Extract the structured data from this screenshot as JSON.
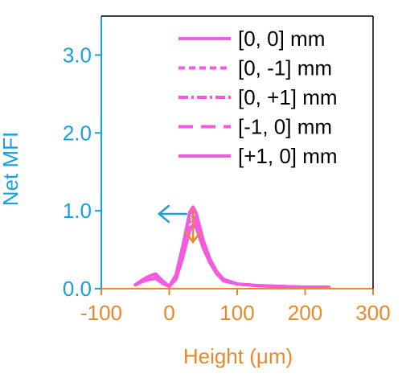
{
  "colors": {
    "series": "#f45ae0",
    "y_axis": "#1aa0dc",
    "x_axis": "#e8882a",
    "text": "#000000"
  },
  "chart_data": {
    "type": "line",
    "xlabel": "Height (μm)",
    "ylabel": "Net MFI",
    "xlim": [
      -100,
      300
    ],
    "ylim": [
      0,
      3.5
    ],
    "x_ticks": [
      -100,
      0,
      100,
      200,
      300
    ],
    "x_tick_labels": [
      "-100",
      "0",
      "100",
      "200",
      "300"
    ],
    "y_ticks": [
      0,
      1,
      2,
      3
    ],
    "y_tick_labels": [
      "0.0",
      "1.0",
      "2.0",
      "3.0"
    ],
    "grid": false,
    "legend_position": "top-right",
    "series": [
      {
        "name": "[0, 0] mm",
        "dash": "solid",
        "x": [
          -50,
          -40,
          -30,
          -20,
          -10,
          0,
          10,
          20,
          30,
          35,
          40,
          50,
          60,
          70,
          80,
          100,
          130,
          160,
          200,
          235
        ],
        "y": [
          0.05,
          0.09,
          0.12,
          0.13,
          0.07,
          0.03,
          0.18,
          0.55,
          0.98,
          1.05,
          0.96,
          0.62,
          0.38,
          0.22,
          0.12,
          0.06,
          0.04,
          0.03,
          0.02,
          0.02
        ]
      },
      {
        "name": "[0, -1] mm",
        "dash": "dash",
        "x": [
          -50,
          -40,
          -30,
          -20,
          -10,
          0,
          10,
          20,
          30,
          35,
          40,
          50,
          60,
          70,
          80,
          100,
          130,
          160,
          200,
          235
        ],
        "y": [
          0.05,
          0.1,
          0.14,
          0.15,
          0.08,
          0.03,
          0.16,
          0.5,
          0.92,
          1.0,
          0.93,
          0.6,
          0.37,
          0.21,
          0.12,
          0.06,
          0.04,
          0.03,
          0.02,
          0.02
        ]
      },
      {
        "name": "[0, +1] mm",
        "dash": "dashdot",
        "x": [
          -50,
          -40,
          -30,
          -20,
          -10,
          0,
          10,
          20,
          30,
          35,
          40,
          50,
          60,
          70,
          80,
          100,
          130,
          160,
          200,
          235
        ],
        "y": [
          0.05,
          0.09,
          0.12,
          0.14,
          0.07,
          0.03,
          0.15,
          0.45,
          0.85,
          0.93,
          0.88,
          0.58,
          0.36,
          0.2,
          0.11,
          0.06,
          0.04,
          0.03,
          0.02,
          0.02
        ]
      },
      {
        "name": "[-1, 0] mm",
        "dash": "longdash",
        "x": [
          -50,
          -40,
          -30,
          -20,
          -10,
          0,
          10,
          20,
          30,
          35,
          40,
          50,
          60,
          70,
          80,
          100,
          130,
          160,
          200,
          235
        ],
        "y": [
          0.05,
          0.1,
          0.15,
          0.17,
          0.09,
          0.03,
          0.14,
          0.42,
          0.8,
          0.88,
          0.83,
          0.55,
          0.35,
          0.2,
          0.11,
          0.06,
          0.04,
          0.03,
          0.02,
          0.02
        ]
      },
      {
        "name": "[+1, 0] mm",
        "dash": "solid",
        "x": [
          -50,
          -40,
          -30,
          -20,
          -10,
          0,
          10,
          20,
          30,
          35,
          40,
          50,
          60,
          70,
          80,
          100,
          130,
          160,
          200,
          235
        ],
        "y": [
          0.05,
          0.11,
          0.16,
          0.19,
          0.1,
          0.03,
          0.12,
          0.4,
          0.75,
          0.82,
          0.78,
          0.52,
          0.33,
          0.19,
          0.1,
          0.06,
          0.04,
          0.03,
          0.02,
          0.02
        ]
      }
    ],
    "annotations": [
      {
        "type": "arrow",
        "direction": "left",
        "color": "y_axis",
        "x": -15,
        "y": 0.96
      },
      {
        "type": "arrow",
        "direction": "down",
        "color": "x_axis",
        "x": 35,
        "y": 0.6
      }
    ]
  }
}
